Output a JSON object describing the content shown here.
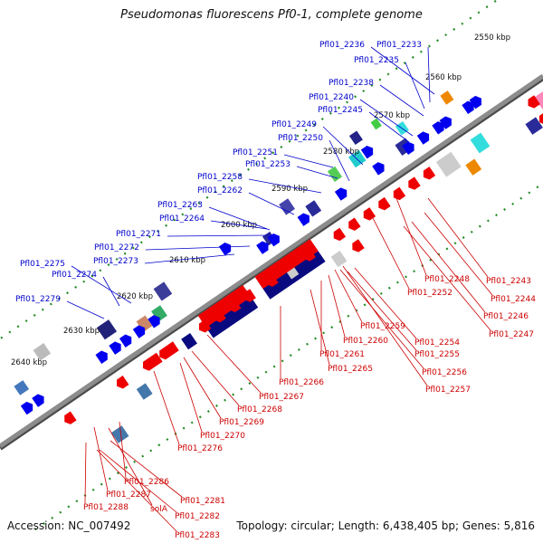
{
  "title": "Pseudomonas fluorescens Pf0-1, complete genome",
  "footer": {
    "accession": "Accession: NC_007492",
    "summary": "Topology: circular; Length: 6,438,405 bp; Genes: 5,816"
  },
  "colors": {
    "backbone": "#8c8c8c",
    "forward_label": "#0000cc",
    "reverse_label": "#cc0000",
    "tick": "#228b22",
    "forward_feature": "#0000ee",
    "reverse_feature": "#ee0000",
    "dark_feature": "#0a0a80"
  },
  "ruler": {
    "ticks": [
      "2550 kbp",
      "2560 kbp",
      "2570 kbp",
      "2580 kbp",
      "2590 kbp",
      "2600 kbp",
      "2610 kbp",
      "2620 kbp",
      "2630 kbp",
      "2640 kbp"
    ]
  },
  "forward_genes": [
    "Pfl01_2236",
    "Pfl01_2233",
    "Pfl01_2235",
    "Pfl01_2238",
    "Pfl01_2240",
    "Pfl01_2245",
    "Pfl01_2249",
    "Pfl01_2250",
    "Pfl01_2251",
    "Pfl01_2253",
    "Pfl01_2258",
    "Pfl01_2262",
    "Pfl01_2263",
    "Pfl01_2264",
    "Pfl01_2271",
    "Pfl01_2272",
    "Pfl01_2273",
    "Pfl01_2275",
    "Pfl01_2274",
    "Pfl01_2279"
  ],
  "reverse_genes": [
    "Pfl01_2248",
    "Pfl01_2243",
    "Pfl01_2252",
    "Pfl01_2244",
    "Pfl01_2246",
    "Pfl01_2247",
    "Pfl01_2259",
    "Pfl01_2254",
    "Pfl01_2260",
    "Pfl01_2255",
    "Pfl01_2261",
    "Pfl01_2265",
    "Pfl01_2256",
    "Pfl01_2266",
    "Pfl01_2257",
    "Pfl01_2267",
    "Pfl01_2268",
    "Pfl01_2269",
    "Pfl01_2270",
    "Pfl01_2276",
    "Pfl01_2286",
    "Pfl01_2287",
    "solA",
    "Pfl01_2281",
    "Pfl01_2288",
    "Pfl01_2282",
    "Pfl01_2283"
  ]
}
